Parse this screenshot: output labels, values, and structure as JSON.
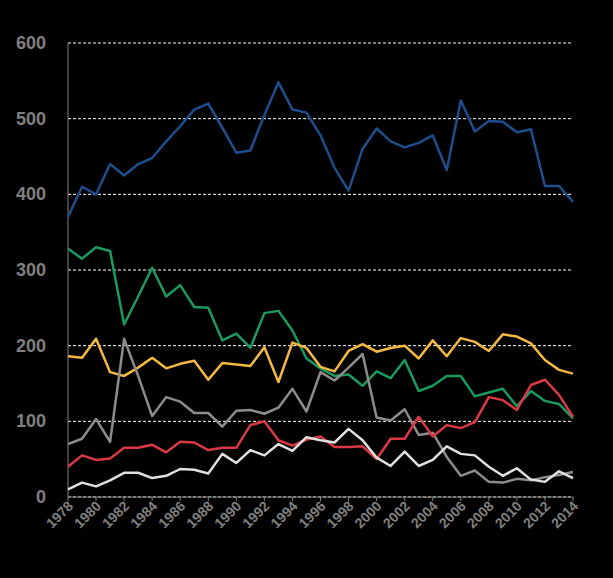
{
  "chart_data": {
    "type": "line",
    "x": [
      1978,
      1979,
      1980,
      1981,
      1982,
      1983,
      1984,
      1985,
      1986,
      1987,
      1988,
      1989,
      1990,
      1991,
      1992,
      1993,
      1994,
      1995,
      1996,
      1997,
      1998,
      1999,
      2000,
      2001,
      2002,
      2003,
      2004,
      2005,
      2006,
      2007,
      2008,
      2009,
      2010,
      2011,
      2012,
      2013,
      2014
    ],
    "xlim": [
      1978,
      2014
    ],
    "xticks": [
      1978,
      1980,
      1982,
      1984,
      1986,
      1988,
      1990,
      1992,
      1994,
      1996,
      1998,
      2000,
      2002,
      2004,
      2006,
      2008,
      2010,
      2012,
      2014
    ],
    "ylim": [
      0,
      600
    ],
    "yticks": [
      0,
      100,
      200,
      300,
      400,
      500,
      600
    ],
    "grid": true,
    "series": [
      {
        "color": "#1f4e8c",
        "values": [
          370,
          410,
          400,
          440,
          425,
          440,
          448,
          470,
          490,
          512,
          520,
          488,
          455,
          458,
          505,
          548,
          512,
          508,
          478,
          435,
          405,
          460,
          487,
          470,
          462,
          468,
          478,
          432,
          524,
          483,
          497,
          496,
          482,
          486,
          411,
          411,
          390
        ]
      },
      {
        "color": "#1a9a5f",
        "values": [
          328,
          315,
          330,
          325,
          228,
          265,
          303,
          265,
          280,
          251,
          250,
          207,
          216,
          197,
          243,
          246,
          220,
          183,
          170,
          160,
          162,
          147,
          166,
          157,
          181,
          140,
          147,
          160,
          160,
          133,
          138,
          143,
          120,
          140,
          127,
          123,
          104
        ]
      },
      {
        "color": "#f5b942",
        "values": [
          186,
          184,
          209,
          165,
          160,
          171,
          184,
          170,
          176,
          180,
          155,
          177,
          175,
          173,
          198,
          152,
          204,
          197,
          172,
          166,
          193,
          202,
          192,
          197,
          200,
          183,
          207,
          186,
          210,
          205,
          193,
          215,
          212,
          203,
          181,
          168,
          163
        ]
      },
      {
        "color": "#8c8c8c",
        "values": [
          70,
          77,
          103,
          73,
          209,
          160,
          107,
          132,
          126,
          111,
          111,
          93,
          114,
          115,
          110,
          118,
          143,
          113,
          165,
          154,
          171,
          189,
          105,
          101,
          116,
          82,
          85,
          53,
          28,
          35,
          20,
          19,
          24,
          22,
          26,
          29,
          33
        ]
      },
      {
        "color": "#d93945",
        "values": [
          40,
          55,
          49,
          51,
          65,
          65,
          69,
          59,
          73,
          72,
          62,
          65,
          65,
          95,
          100,
          75,
          68,
          76,
          80,
          66,
          66,
          67,
          50,
          77,
          77,
          106,
          80,
          95,
          91,
          99,
          132,
          128,
          115,
          148,
          155,
          135,
          106
        ]
      },
      {
        "color": "#e0e0e0",
        "values": [
          10,
          19,
          14,
          22,
          32,
          32,
          25,
          28,
          37,
          36,
          31,
          57,
          45,
          62,
          55,
          70,
          61,
          79,
          75,
          72,
          90,
          75,
          52,
          41,
          60,
          41,
          49,
          67,
          57,
          55,
          40,
          28,
          38,
          23,
          20,
          34,
          25
        ]
      }
    ]
  }
}
